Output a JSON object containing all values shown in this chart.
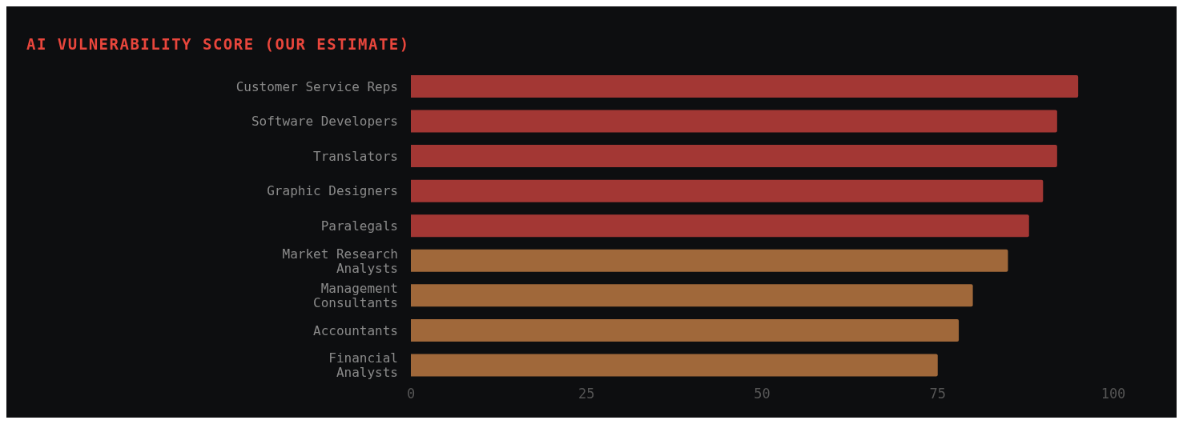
{
  "chart_data": {
    "type": "bar",
    "orientation": "horizontal",
    "title": "AI VULNERABILITY SCORE (OUR ESTIMATE)",
    "categories": [
      "Customer Service Reps",
      "Software Developers",
      "Translators",
      "Graphic Designers",
      "Paralegals",
      "Market Research\nAnalysts",
      "Management\nConsultants",
      "Accountants",
      "Financial\nAnalysts"
    ],
    "values": [
      95,
      92,
      92,
      90,
      88,
      85,
      80,
      78,
      75
    ],
    "colors": [
      "#a33734",
      "#a33734",
      "#a33734",
      "#a33734",
      "#a33734",
      "#a0683a",
      "#a0683a",
      "#a0683a",
      "#a0683a"
    ],
    "xlim": [
      0,
      100
    ],
    "xticks": [
      0,
      25,
      50,
      75,
      100
    ],
    "grid": false
  }
}
